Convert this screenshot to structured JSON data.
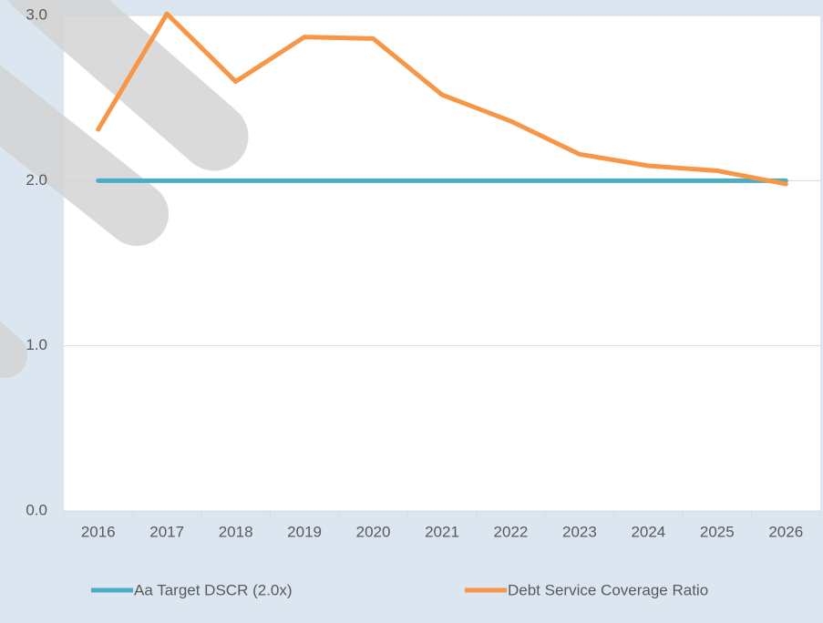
{
  "chart_data": {
    "type": "line",
    "categories": [
      "2016",
      "2017",
      "2018",
      "2019",
      "2020",
      "2021",
      "2022",
      "2023",
      "2024",
      "2025",
      "2026"
    ],
    "series": [
      {
        "name": "Aa Target DSCR (2.0x)",
        "color": "#4bacc6",
        "values": [
          2.0,
          2.0,
          2.0,
          2.0,
          2.0,
          2.0,
          2.0,
          2.0,
          2.0,
          2.0,
          2.0
        ]
      },
      {
        "name": "Debt Service Coverage Ratio",
        "color": "#f79646",
        "values": [
          2.31,
          3.01,
          2.6,
          2.87,
          2.86,
          2.52,
          2.36,
          2.16,
          2.09,
          2.06,
          1.98
        ]
      }
    ],
    "ylim": [
      0,
      3
    ],
    "yticks": [
      {
        "value": 0,
        "label": "0.0"
      },
      {
        "value": 1,
        "label": "1.0"
      },
      {
        "value": 2,
        "label": "2.0"
      },
      {
        "value": 3,
        "label": "3.0"
      }
    ],
    "grid": true,
    "legend": "bottom"
  }
}
